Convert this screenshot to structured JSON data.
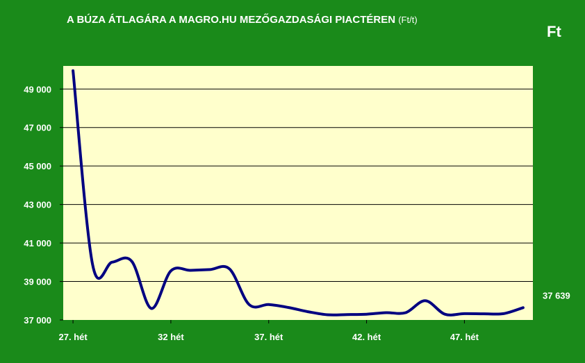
{
  "title": "A BÚZA ÁTLAGÁRA A MAGRO.HU MEZŐGAZDASÁGI PIACTÉREN",
  "title_unit": "(Ft/t)",
  "corner_unit": "Ft",
  "colors": {
    "background": "#1a8a1a",
    "plot_area": "#ffffcc",
    "line": "#000080",
    "gridline": "#000000",
    "text": "#ffffff"
  },
  "chart_data": {
    "type": "line",
    "title": "A BÚZA ÁTLAGÁRA A MAGRO.HU MEZŐGAZDASÁGI PIACTÉREN (Ft/t)",
    "xlabel": "",
    "ylabel": "Ft",
    "ylim": [
      37000,
      50200
    ],
    "yticks": [
      37000,
      39000,
      41000,
      43000,
      45000,
      47000,
      49000
    ],
    "ytick_labels": [
      "37 000",
      "39 000",
      "41 000",
      "43 000",
      "45 000",
      "47 000",
      "49 000"
    ],
    "x_tick_labels": [
      "27. hét",
      "32 hét",
      "37. hét",
      "42. hét",
      "47. hét"
    ],
    "x_tick_weeks": [
      27,
      32,
      37,
      42,
      47
    ],
    "xlim": [
      26.5,
      50.5
    ],
    "grid": true,
    "legend": "none",
    "x": [
      27,
      28,
      29,
      30,
      31,
      32,
      33,
      34,
      35,
      36,
      37,
      38,
      39,
      40,
      41,
      42,
      43,
      44,
      45,
      46,
      47,
      48,
      49,
      50
    ],
    "series": [
      {
        "values": [
          49950,
          39870,
          40000,
          40050,
          37600,
          39550,
          39580,
          39620,
          39650,
          37800,
          37800,
          37650,
          37430,
          37270,
          37280,
          37300,
          37380,
          37380,
          38000,
          37300,
          37330,
          37320,
          37330,
          37639
        ]
      }
    ],
    "end_label": "37 639"
  }
}
